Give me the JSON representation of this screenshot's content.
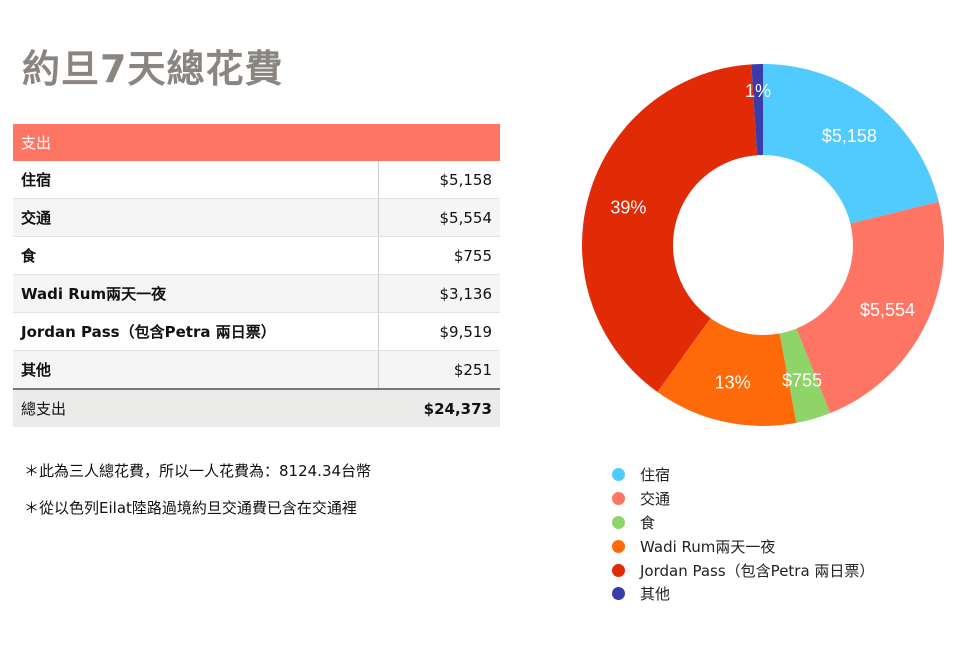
{
  "title": "約旦7天總花費",
  "table": {
    "header": "支出",
    "rows": [
      {
        "label": "住宿",
        "value": "$5,158"
      },
      {
        "label": "交通",
        "value": "$5,554"
      },
      {
        "label": "食",
        "value": "$755"
      },
      {
        "label": "Wadi Rum兩天一夜",
        "value": "$3,136"
      },
      {
        "label": "Jordan Pass（包含Petra 兩日票）",
        "value": "$9,519"
      },
      {
        "label": "其他",
        "value": "$251"
      }
    ],
    "total_label": "總支出",
    "total_value": "$24,373"
  },
  "notes": [
    "＊此為三人總花費，所以一人花費為：8124.34台幣",
    "＊從以色列Eilat陸路過境約旦交通費已含在交通裡"
  ],
  "chart_data": {
    "type": "pie",
    "donut": true,
    "categories": [
      "住宿",
      "交通",
      "食",
      "Wadi Rum兩天一夜",
      "Jordan Pass（包含Petra 兩日票）",
      "其他"
    ],
    "values": [
      5158,
      5554,
      755,
      3136,
      9519,
      251
    ],
    "colors": [
      "#51cbfe",
      "#fe7563",
      "#8fd468",
      "#fe6a09",
      "#e12b06",
      "#3a3ca7"
    ],
    "slice_labels": [
      "$5,158",
      "$5,554",
      "$755",
      "13%",
      "39%",
      "1%"
    ],
    "legend_position": "bottom"
  }
}
